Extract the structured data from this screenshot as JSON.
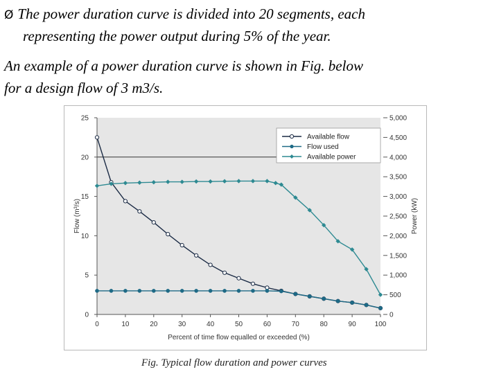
{
  "slide": {
    "bullet_symbol": "Ø",
    "bullet_line1": "The power duration curve is divided into 20 segments, each",
    "bullet_line2": "representing the power output during 5% of the year.",
    "para_line1": "An example of a power duration curve is shown in Fig. below",
    "para_line2": "for a design flow of 3 m3/s.",
    "caption": "Fig.  Typical flow duration and power curves"
  },
  "chart_data": {
    "type": "line",
    "title": "",
    "xlabel": "Percent of time flow equalled or exceeded (%)",
    "ylabel": "Flow (m³/s)",
    "y2label": "Power (kW)",
    "xlim": [
      0,
      100
    ],
    "ylim": [
      0,
      25
    ],
    "y2lim": [
      0,
      5000
    ],
    "x_ticks": [
      "0",
      "10",
      "20",
      "30",
      "40",
      "50",
      "60",
      "70",
      "80",
      "90",
      "100"
    ],
    "y_ticks": [
      "0",
      "5",
      "10",
      "15",
      "20",
      "25"
    ],
    "y2_ticks": [
      "0",
      "500",
      "1,000",
      "1,500",
      "2,000",
      "2,500",
      "3,000",
      "3,500",
      "4,000",
      "4,500",
      "5,000"
    ],
    "reference_line_y": 20,
    "legend_position": "top-right",
    "series": [
      {
        "name": "Available flow",
        "axis": "left",
        "color": "#1a2a44",
        "marker": "open-circle",
        "x": [
          0,
          5,
          10,
          15,
          20,
          25,
          30,
          35,
          40,
          45,
          50,
          55,
          60,
          65,
          70,
          75,
          80,
          85,
          90,
          95,
          100
        ],
        "y": [
          22.5,
          16.8,
          14.4,
          13.1,
          11.7,
          10.2,
          8.8,
          7.5,
          6.3,
          5.3,
          4.6,
          3.9,
          3.4,
          3.0,
          2.6,
          2.3,
          2.0,
          1.7,
          1.5,
          1.2,
          0.8
        ]
      },
      {
        "name": "Flow used",
        "axis": "left",
        "color": "#1e6a86",
        "marker": "filled-circle",
        "x": [
          0,
          5,
          10,
          15,
          20,
          25,
          30,
          35,
          40,
          45,
          50,
          55,
          60,
          65,
          70,
          75,
          80,
          85,
          90,
          95,
          100
        ],
        "y": [
          3.0,
          3.0,
          3.0,
          3.0,
          3.0,
          3.0,
          3.0,
          3.0,
          3.0,
          3.0,
          3.0,
          3.0,
          3.0,
          2.95,
          2.6,
          2.3,
          2.0,
          1.7,
          1.5,
          1.2,
          0.8
        ]
      },
      {
        "name": "Available power",
        "axis": "right",
        "color": "#2e8a92",
        "marker": "diamond",
        "x": [
          0,
          5,
          10,
          15,
          20,
          25,
          30,
          35,
          40,
          45,
          50,
          55,
          60,
          63,
          65,
          70,
          75,
          80,
          85,
          90,
          95,
          100
        ],
        "y": [
          3270,
          3320,
          3340,
          3350,
          3360,
          3370,
          3370,
          3380,
          3380,
          3385,
          3390,
          3390,
          3390,
          3340,
          3300,
          2970,
          2650,
          2270,
          1860,
          1650,
          1150,
          500
        ]
      }
    ]
  }
}
